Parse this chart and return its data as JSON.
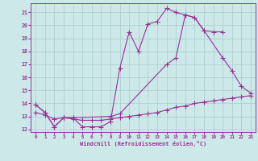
{
  "bg_color": "#cce8e8",
  "grid_color": "#aacccc",
  "line_color": "#993399",
  "xlabel": "Windchill (Refroidissement éolien,°C)",
  "xlim": [
    -0.5,
    23.5
  ],
  "ylim": [
    11.8,
    21.7
  ],
  "yticks": [
    12,
    13,
    14,
    15,
    16,
    17,
    18,
    19,
    20,
    21
  ],
  "xticks": [
    0,
    1,
    2,
    3,
    4,
    5,
    6,
    7,
    8,
    9,
    10,
    11,
    12,
    13,
    14,
    15,
    16,
    17,
    18,
    19,
    20,
    21,
    22,
    23
  ],
  "line1_x": [
    0,
    1,
    2,
    3,
    4,
    5,
    6,
    7,
    8,
    9,
    10,
    11,
    12,
    13,
    14,
    15,
    16,
    17,
    18,
    19,
    20
  ],
  "line1_y": [
    13.9,
    13.3,
    12.2,
    12.9,
    12.9,
    12.2,
    12.2,
    12.2,
    12.6,
    16.7,
    19.5,
    18.0,
    20.1,
    20.3,
    21.3,
    21.0,
    20.8,
    20.6,
    19.6,
    19.5,
    19.5
  ],
  "line2_x": [
    0,
    1,
    2,
    3,
    4,
    8,
    9,
    14,
    15,
    16,
    17,
    18,
    20,
    21,
    22,
    23
  ],
  "line2_y": [
    13.9,
    13.3,
    12.2,
    12.9,
    12.9,
    13.0,
    13.2,
    17.0,
    17.5,
    20.8,
    20.6,
    19.6,
    17.5,
    16.5,
    15.3,
    14.8
  ],
  "line3_x": [
    0,
    1,
    2,
    3,
    4,
    5,
    6,
    7,
    8,
    9,
    10,
    11,
    12,
    13,
    14,
    15,
    16,
    17,
    18,
    19,
    20,
    21,
    22,
    23
  ],
  "line3_y": [
    13.3,
    13.1,
    12.8,
    12.9,
    12.8,
    12.7,
    12.7,
    12.7,
    12.8,
    12.9,
    13.0,
    13.1,
    13.2,
    13.3,
    13.5,
    13.7,
    13.8,
    14.0,
    14.1,
    14.2,
    14.3,
    14.4,
    14.5,
    14.6
  ]
}
